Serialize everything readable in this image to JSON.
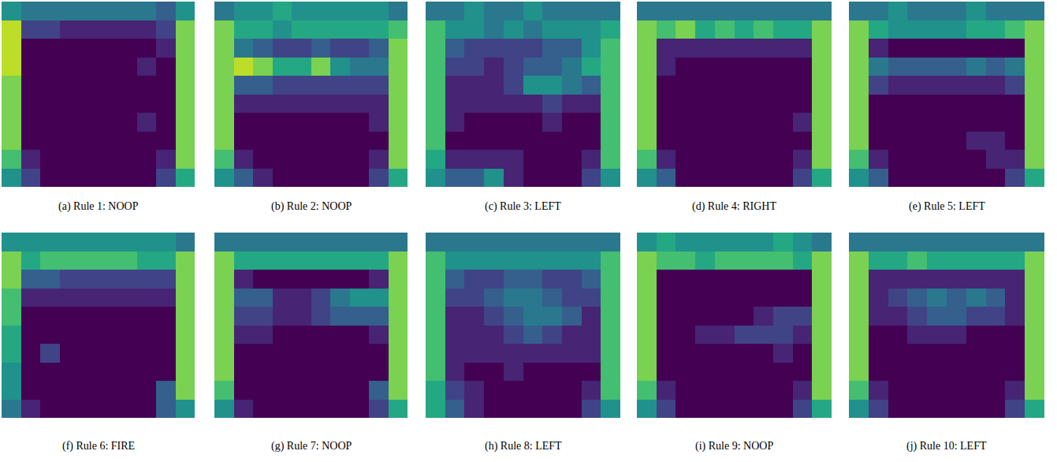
{
  "chart_data": [
    {
      "type": "heatmap",
      "title": "(a) Rule 1: NOOP",
      "color": "Viridis",
      "zlim": [
        0,
        1
      ],
      "tick_labels": false,
      "z": [
        [
          0.5,
          0.4,
          0.4,
          0.4,
          0.4,
          0.4,
          0.4,
          0.4,
          0.3,
          0.5
        ],
        [
          0.9,
          0.2,
          0.2,
          0.1,
          0.1,
          0.1,
          0.1,
          0.1,
          0.2,
          0.8
        ],
        [
          0.9,
          0,
          0,
          0,
          0,
          0,
          0,
          0,
          0.1,
          0.8
        ],
        [
          0.9,
          0,
          0,
          0,
          0,
          0,
          0,
          0.1,
          0,
          0.8
        ],
        [
          0.8,
          0,
          0,
          0,
          0,
          0,
          0,
          0,
          0,
          0.8
        ],
        [
          0.8,
          0,
          0,
          0,
          0,
          0,
          0,
          0,
          0,
          0.8
        ],
        [
          0.8,
          0,
          0,
          0,
          0,
          0,
          0,
          0.1,
          0,
          0.8
        ],
        [
          0.8,
          0,
          0,
          0,
          0,
          0,
          0,
          0,
          0,
          0.8
        ],
        [
          0.7,
          0.1,
          0,
          0,
          0,
          0,
          0,
          0,
          0.1,
          0.8
        ],
        [
          0.5,
          0.2,
          0,
          0,
          0,
          0,
          0,
          0,
          0.2,
          0.6
        ]
      ]
    },
    {
      "type": "heatmap",
      "title": "(b) Rule 2: NOOP",
      "color": "Viridis",
      "zlim": [
        0,
        1
      ],
      "tick_labels": false,
      "z": [
        [
          0.4,
          0.5,
          0.5,
          0.6,
          0.5,
          0.5,
          0.5,
          0.5,
          0.5,
          0.4
        ],
        [
          0.8,
          0.6,
          0.6,
          0.5,
          0.6,
          0.6,
          0.6,
          0.6,
          0.6,
          0.7
        ],
        [
          0.8,
          0.4,
          0.3,
          0.2,
          0.2,
          0.3,
          0.2,
          0.2,
          0.3,
          0.8
        ],
        [
          0.8,
          0.9,
          0.8,
          0.6,
          0.6,
          0.8,
          0.5,
          0.4,
          0.4,
          0.8
        ],
        [
          0.8,
          0.3,
          0.3,
          0.2,
          0.2,
          0.2,
          0.2,
          0.2,
          0.2,
          0.8
        ],
        [
          0.8,
          0.1,
          0.1,
          0.1,
          0.1,
          0.1,
          0.1,
          0.1,
          0.1,
          0.8
        ],
        [
          0.8,
          0,
          0,
          0,
          0,
          0,
          0,
          0,
          0.1,
          0.8
        ],
        [
          0.8,
          0,
          0,
          0,
          0,
          0,
          0,
          0,
          0,
          0.8
        ],
        [
          0.7,
          0.1,
          0,
          0,
          0,
          0,
          0,
          0,
          0.1,
          0.8
        ],
        [
          0.5,
          0.3,
          0.1,
          0,
          0,
          0,
          0,
          0,
          0.2,
          0.6
        ]
      ]
    },
    {
      "type": "heatmap",
      "title": "(c) Rule 3: LEFT",
      "color": "Viridis",
      "zlim": [
        0,
        1
      ],
      "tick_labels": false,
      "z": [
        [
          0.4,
          0.4,
          0.5,
          0.4,
          0.4,
          0.5,
          0.4,
          0.4,
          0.4,
          0.4
        ],
        [
          0.7,
          0.5,
          0.5,
          0.4,
          0.5,
          0.4,
          0.5,
          0.5,
          0.5,
          0.6
        ],
        [
          0.7,
          0.3,
          0.2,
          0.2,
          0.2,
          0.2,
          0.3,
          0.3,
          0.5,
          0.7
        ],
        [
          0.7,
          0.2,
          0.2,
          0.1,
          0.2,
          0.3,
          0.3,
          0.4,
          0.6,
          0.7
        ],
        [
          0.7,
          0.1,
          0.1,
          0.1,
          0.2,
          0.5,
          0.5,
          0.4,
          0.3,
          0.7
        ],
        [
          0.7,
          0.1,
          0.1,
          0.1,
          0.1,
          0.1,
          0.2,
          0.1,
          0.1,
          0.7
        ],
        [
          0.7,
          0.1,
          0,
          0,
          0,
          0,
          0.1,
          0,
          0,
          0.7
        ],
        [
          0.7,
          0,
          0,
          0,
          0,
          0,
          0,
          0,
          0,
          0.7
        ],
        [
          0.6,
          0.1,
          0.1,
          0.1,
          0.1,
          0,
          0,
          0,
          0.1,
          0.7
        ],
        [
          0.5,
          0.3,
          0.3,
          0.5,
          0.1,
          0,
          0,
          0,
          0.2,
          0.5
        ]
      ]
    },
    {
      "type": "heatmap",
      "title": "(d) Rule 4: RIGHT",
      "color": "Viridis",
      "zlim": [
        0,
        1
      ],
      "tick_labels": false,
      "z": [
        [
          0.4,
          0.4,
          0.4,
          0.4,
          0.4,
          0.4,
          0.4,
          0.4,
          0.4,
          0.4
        ],
        [
          0.8,
          0.7,
          0.8,
          0.6,
          0.7,
          0.6,
          0.7,
          0.6,
          0.6,
          0.8
        ],
        [
          0.8,
          0.1,
          0.1,
          0.1,
          0.1,
          0.1,
          0.1,
          0.1,
          0.1,
          0.8
        ],
        [
          0.8,
          0.1,
          0,
          0,
          0,
          0,
          0,
          0,
          0,
          0.8
        ],
        [
          0.8,
          0,
          0,
          0,
          0,
          0,
          0,
          0,
          0,
          0.8
        ],
        [
          0.8,
          0,
          0,
          0,
          0,
          0,
          0,
          0,
          0,
          0.8
        ],
        [
          0.8,
          0,
          0,
          0,
          0,
          0,
          0,
          0,
          0.1,
          0.8
        ],
        [
          0.8,
          0,
          0,
          0,
          0,
          0,
          0,
          0,
          0,
          0.8
        ],
        [
          0.7,
          0.1,
          0,
          0,
          0,
          0,
          0,
          0,
          0.1,
          0.8
        ],
        [
          0.5,
          0.3,
          0,
          0,
          0,
          0,
          0,
          0,
          0.2,
          0.6
        ]
      ]
    },
    {
      "type": "heatmap",
      "title": "(e) Rule 5: LEFT",
      "color": "Viridis",
      "zlim": [
        0,
        1
      ],
      "tick_labels": false,
      "z": [
        [
          0.4,
          0.4,
          0.5,
          0.4,
          0.4,
          0.4,
          0.5,
          0.4,
          0.4,
          0.4
        ],
        [
          0.8,
          0.6,
          0.5,
          0.5,
          0.5,
          0.5,
          0.6,
          0.6,
          0.7,
          0.8
        ],
        [
          0.8,
          0.1,
          0,
          0,
          0,
          0,
          0,
          0,
          0,
          0.8
        ],
        [
          0.8,
          0.4,
          0.3,
          0.3,
          0.3,
          0.3,
          0.4,
          0.3,
          0.4,
          0.8
        ],
        [
          0.8,
          0.2,
          0.1,
          0.1,
          0.1,
          0.1,
          0.1,
          0.1,
          0.2,
          0.8
        ],
        [
          0.8,
          0,
          0,
          0,
          0,
          0,
          0,
          0,
          0,
          0.8
        ],
        [
          0.8,
          0,
          0,
          0,
          0,
          0,
          0,
          0,
          0,
          0.8
        ],
        [
          0.8,
          0,
          0,
          0,
          0,
          0,
          0.1,
          0.1,
          0,
          0.8
        ],
        [
          0.7,
          0.1,
          0,
          0,
          0,
          0,
          0,
          0.1,
          0.1,
          0.8
        ],
        [
          0.5,
          0.3,
          0,
          0,
          0,
          0,
          0,
          0,
          0.2,
          0.6
        ]
      ]
    },
    {
      "type": "heatmap",
      "title": "(f) Rule 6: FIRE",
      "color": "Viridis",
      "zlim": [
        0,
        1
      ],
      "tick_labels": false,
      "z": [
        [
          0.5,
          0.5,
          0.5,
          0.5,
          0.5,
          0.5,
          0.5,
          0.5,
          0.5,
          0.4
        ],
        [
          0.8,
          0.6,
          0.7,
          0.7,
          0.7,
          0.7,
          0.7,
          0.6,
          0.6,
          0.8
        ],
        [
          0.8,
          0.3,
          0.3,
          0.2,
          0.2,
          0.2,
          0.2,
          0.2,
          0.2,
          0.8
        ],
        [
          0.7,
          0.1,
          0.1,
          0.1,
          0.1,
          0.1,
          0.1,
          0.1,
          0.1,
          0.8
        ],
        [
          0.7,
          0,
          0,
          0,
          0,
          0,
          0,
          0,
          0,
          0.8
        ],
        [
          0.6,
          0,
          0,
          0,
          0,
          0,
          0,
          0,
          0,
          0.8
        ],
        [
          0.6,
          0,
          0.2,
          0,
          0,
          0,
          0,
          0,
          0,
          0.8
        ],
        [
          0.5,
          0,
          0,
          0,
          0,
          0,
          0,
          0,
          0,
          0.8
        ],
        [
          0.5,
          0,
          0,
          0,
          0,
          0,
          0,
          0,
          0.3,
          0.8
        ],
        [
          0.4,
          0.1,
          0,
          0,
          0,
          0,
          0,
          0,
          0.3,
          0.5
        ]
      ]
    },
    {
      "type": "heatmap",
      "title": "(g) Rule 7: NOOP",
      "color": "Viridis",
      "zlim": [
        0,
        1
      ],
      "tick_labels": false,
      "z": [
        [
          0.4,
          0.4,
          0.4,
          0.4,
          0.4,
          0.4,
          0.4,
          0.4,
          0.4,
          0.4
        ],
        [
          0.8,
          0.6,
          0.6,
          0.6,
          0.6,
          0.6,
          0.6,
          0.6,
          0.6,
          0.8
        ],
        [
          0.8,
          0.1,
          0,
          0,
          0,
          0,
          0,
          0,
          0.1,
          0.8
        ],
        [
          0.8,
          0.3,
          0.3,
          0.1,
          0.1,
          0.2,
          0.4,
          0.5,
          0.5,
          0.8
        ],
        [
          0.8,
          0.2,
          0.2,
          0.1,
          0.1,
          0.2,
          0.3,
          0.3,
          0.3,
          0.8
        ],
        [
          0.8,
          0.1,
          0.1,
          0,
          0,
          0,
          0,
          0,
          0.1,
          0.8
        ],
        [
          0.8,
          0,
          0,
          0,
          0,
          0,
          0,
          0,
          0,
          0.8
        ],
        [
          0.8,
          0,
          0,
          0,
          0,
          0,
          0,
          0,
          0,
          0.8
        ],
        [
          0.7,
          0,
          0,
          0,
          0,
          0,
          0,
          0,
          0.3,
          0.8
        ],
        [
          0.5,
          0.1,
          0,
          0,
          0,
          0,
          0,
          0,
          0.2,
          0.6
        ]
      ]
    },
    {
      "type": "heatmap",
      "title": "(h) Rule 8: LEFT",
      "color": "Viridis",
      "zlim": [
        0,
        1
      ],
      "tick_labels": false,
      "z": [
        [
          0.4,
          0.4,
          0.4,
          0.4,
          0.4,
          0.4,
          0.4,
          0.4,
          0.4,
          0.4
        ],
        [
          0.7,
          0.5,
          0.5,
          0.5,
          0.5,
          0.5,
          0.5,
          0.5,
          0.5,
          0.7
        ],
        [
          0.7,
          0.3,
          0.2,
          0.2,
          0.3,
          0.3,
          0.2,
          0.2,
          0.3,
          0.7
        ],
        [
          0.7,
          0.2,
          0.2,
          0.3,
          0.4,
          0.4,
          0.3,
          0.2,
          0.2,
          0.7
        ],
        [
          0.7,
          0.1,
          0.1,
          0.2,
          0.3,
          0.4,
          0.4,
          0.3,
          0.1,
          0.7
        ],
        [
          0.7,
          0.1,
          0.1,
          0.1,
          0.2,
          0.3,
          0.2,
          0.1,
          0.1,
          0.7
        ],
        [
          0.7,
          0.1,
          0.1,
          0.1,
          0.1,
          0.1,
          0.1,
          0.1,
          0.1,
          0.7
        ],
        [
          0.7,
          0.1,
          0,
          0,
          0.1,
          0,
          0,
          0,
          0,
          0.7
        ],
        [
          0.6,
          0.2,
          0.1,
          0,
          0,
          0,
          0,
          0,
          0.1,
          0.7
        ],
        [
          0.6,
          0.3,
          0.1,
          0,
          0,
          0,
          0,
          0,
          0.2,
          0.5
        ]
      ]
    },
    {
      "type": "heatmap",
      "title": "(i) Rule 9: NOOP",
      "color": "Viridis",
      "zlim": [
        0,
        1
      ],
      "tick_labels": false,
      "z": [
        [
          0.5,
          0.6,
          0.5,
          0.5,
          0.5,
          0.5,
          0.5,
          0.6,
          0.5,
          0.4
        ],
        [
          0.8,
          0.7,
          0.7,
          0.6,
          0.7,
          0.7,
          0.7,
          0.7,
          0.6,
          0.8
        ],
        [
          0.8,
          0,
          0,
          0,
          0,
          0,
          0,
          0,
          0,
          0.8
        ],
        [
          0.8,
          0,
          0,
          0,
          0,
          0,
          0,
          0,
          0,
          0.8
        ],
        [
          0.8,
          0,
          0,
          0,
          0,
          0,
          0.1,
          0.2,
          0.2,
          0.8
        ],
        [
          0.8,
          0,
          0,
          0.1,
          0.1,
          0.2,
          0.2,
          0.2,
          0.1,
          0.8
        ],
        [
          0.8,
          0,
          0,
          0,
          0,
          0,
          0,
          0.1,
          0,
          0.8
        ],
        [
          0.8,
          0,
          0,
          0,
          0,
          0,
          0,
          0,
          0,
          0.8
        ],
        [
          0.7,
          0.1,
          0,
          0,
          0,
          0,
          0,
          0,
          0.1,
          0.8
        ],
        [
          0.5,
          0.2,
          0,
          0,
          0,
          0,
          0,
          0,
          0.2,
          0.6
        ]
      ]
    },
    {
      "type": "heatmap",
      "title": "(j) Rule 10: LEFT",
      "color": "Viridis",
      "zlim": [
        0,
        1
      ],
      "tick_labels": false,
      "z": [
        [
          0.4,
          0.4,
          0.4,
          0.4,
          0.4,
          0.4,
          0.4,
          0.4,
          0.4,
          0.4
        ],
        [
          0.8,
          0.6,
          0.6,
          0.7,
          0.6,
          0.6,
          0.6,
          0.6,
          0.6,
          0.8
        ],
        [
          0.8,
          0.1,
          0.1,
          0.1,
          0.1,
          0.1,
          0.1,
          0.1,
          0.1,
          0.8
        ],
        [
          0.8,
          0.1,
          0.2,
          0.3,
          0.4,
          0.3,
          0.4,
          0.3,
          0.1,
          0.8
        ],
        [
          0.8,
          0.1,
          0.1,
          0.2,
          0.3,
          0.3,
          0.2,
          0.2,
          0.1,
          0.8
        ],
        [
          0.8,
          0,
          0,
          0.1,
          0.1,
          0.1,
          0,
          0,
          0,
          0.8
        ],
        [
          0.8,
          0,
          0,
          0,
          0,
          0,
          0,
          0,
          0,
          0.8
        ],
        [
          0.8,
          0,
          0,
          0,
          0,
          0,
          0,
          0,
          0,
          0.8
        ],
        [
          0.7,
          0.1,
          0,
          0,
          0,
          0,
          0,
          0,
          0.1,
          0.8
        ],
        [
          0.5,
          0.2,
          0,
          0,
          0,
          0,
          0,
          0,
          0.2,
          0.6
        ]
      ]
    }
  ]
}
